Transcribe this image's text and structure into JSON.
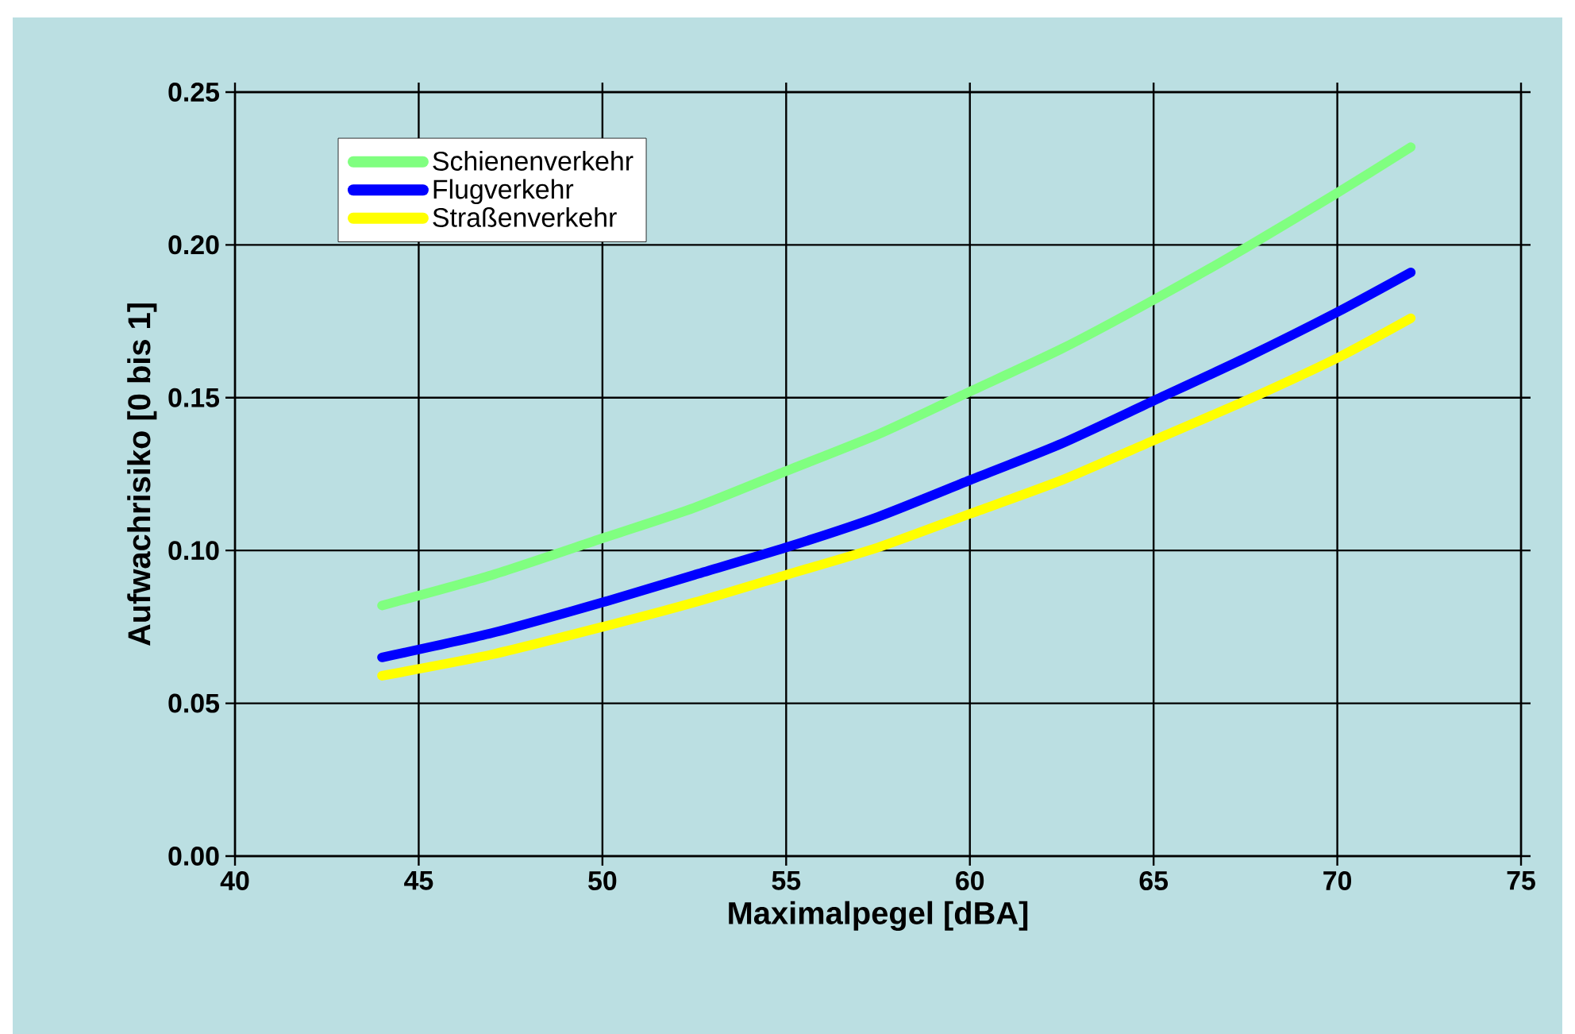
{
  "chart_data": {
    "type": "line",
    "xlabel": "Maximalpegel [dBA]",
    "ylabel": "Aufwachrisiko [0 bis 1]",
    "xlim": [
      40,
      75
    ],
    "xticks": [
      40,
      45,
      50,
      55,
      60,
      65,
      70,
      75
    ],
    "ylim": [
      0,
      0.25
    ],
    "yticks": [
      {
        "value": 0,
        "label": "0.00"
      },
      {
        "value": 0.05,
        "label": "0.05"
      },
      {
        "value": 0.1,
        "label": "0.10"
      },
      {
        "value": 0.15,
        "label": "0.15"
      },
      {
        "value": 0.2,
        "label": "0.20"
      },
      {
        "value": 0.25,
        "label": "0.25"
      }
    ],
    "grid": true,
    "legend": "top left",
    "line_style": "solid",
    "marker": "none",
    "x": [
      44,
      47,
      50,
      52.5,
      55,
      57.5,
      60,
      62.5,
      65,
      67.5,
      70,
      72
    ],
    "series": [
      {
        "name": "Schienenverkehr",
        "color": "#80ff80",
        "values": [
          0.082,
          0.092,
          0.104,
          0.114,
          0.126,
          0.138,
          0.152,
          0.166,
          0.182,
          0.199,
          0.217,
          0.232
        ]
      },
      {
        "name": "Flugverkehr",
        "color": "#0000ff",
        "values": [
          0.065,
          0.073,
          0.083,
          0.092,
          0.101,
          0.111,
          0.123,
          0.135,
          0.149,
          0.163,
          0.178,
          0.191
        ]
      },
      {
        "name": "Straßenverkehr",
        "color": "#ffff00",
        "values": [
          0.059,
          0.066,
          0.075,
          0.083,
          0.092,
          0.101,
          0.112,
          0.123,
          0.136,
          0.149,
          0.163,
          0.176
        ]
      }
    ]
  }
}
